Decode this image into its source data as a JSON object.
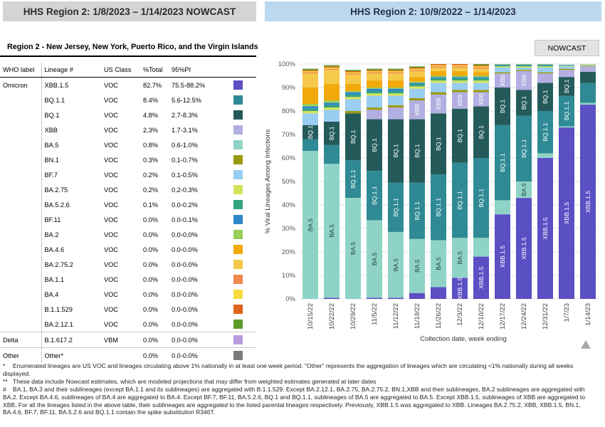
{
  "header": {
    "left_title": "HHS Region 2: 1/8/2023 – 1/14/2023 NOWCAST",
    "right_title": "HHS Region 2: 10/9/2022 – 1/14/2023"
  },
  "region_title": "Region 2 - New Jersey, New York, Puerto Rico, and the Virgin Islands",
  "nowcast_button": "NOWCAST",
  "table": {
    "headers": [
      "WHO label",
      "Lineage #",
      "US Class",
      "%Total",
      "95%PI",
      ""
    ],
    "rows": [
      {
        "who": "Omicron",
        "lineage": "XBB.1.5",
        "cls": "VOC",
        "total": "82.7%",
        "pi": "75.5-88.2%",
        "color": "#5b4fc4"
      },
      {
        "who": "",
        "lineage": "BQ.1.1",
        "cls": "VOC",
        "total": "8.4%",
        "pi": "5.6-12.5%",
        "color": "#2f8a95"
      },
      {
        "who": "",
        "lineage": "BQ.1",
        "cls": "VOC",
        "total": "4.8%",
        "pi": "2.7-8.3%",
        "color": "#245b5a"
      },
      {
        "who": "",
        "lineage": "XBB",
        "cls": "VOC",
        "total": "2.3%",
        "pi": "1.7-3.1%",
        "color": "#b3aee2"
      },
      {
        "who": "",
        "lineage": "BA.5",
        "cls": "VOC",
        "total": "0.8%",
        "pi": "0.6-1.0%",
        "color": "#8fd3c6"
      },
      {
        "who": "",
        "lineage": "BN.1",
        "cls": "VOC",
        "total": "0.3%",
        "pi": "0.1-0.7%",
        "color": "#9a9a10"
      },
      {
        "who": "",
        "lineage": "BF.7",
        "cls": "VOC",
        "total": "0.2%",
        "pi": "0.1-0.5%",
        "color": "#99cdf1"
      },
      {
        "who": "",
        "lineage": "BA.2.75",
        "cls": "VOC",
        "total": "0.2%",
        "pi": "0.2-0.3%",
        "color": "#d4e25c"
      },
      {
        "who": "",
        "lineage": "BA.5.2.6",
        "cls": "VOC",
        "total": "0.1%",
        "pi": "0.0-0.2%",
        "color": "#33a380"
      },
      {
        "who": "",
        "lineage": "BF.11",
        "cls": "VOC",
        "total": "0.0%",
        "pi": "0.0-0.1%",
        "color": "#2e86c9"
      },
      {
        "who": "",
        "lineage": "BA.2",
        "cls": "VOC",
        "total": "0.0%",
        "pi": "0.0-0.0%",
        "color": "#97cf59"
      },
      {
        "who": "",
        "lineage": "BA.4.6",
        "cls": "VOC",
        "total": "0.0%",
        "pi": "0.0-0.0%",
        "color": "#f2a90a"
      },
      {
        "who": "",
        "lineage": "BA.2.75.2",
        "cls": "VOC",
        "total": "0.0%",
        "pi": "0.0-0.0%",
        "color": "#f5c94a"
      },
      {
        "who": "",
        "lineage": "BA.1.1",
        "cls": "VOC",
        "total": "0.0%",
        "pi": "0.0-0.0%",
        "color": "#f0894f"
      },
      {
        "who": "",
        "lineage": "BA.4",
        "cls": "VOC",
        "total": "0.0%",
        "pi": "0.0-0.0%",
        "color": "#f7da3d"
      },
      {
        "who": "",
        "lineage": "B.1.1.529",
        "cls": "VOC",
        "total": "0.0%",
        "pi": "0.0-0.0%",
        "color": "#de6319"
      },
      {
        "who": "",
        "lineage": "BA.2.12.1",
        "cls": "VOC",
        "total": "0.0%",
        "pi": "0.0-0.0%",
        "color": "#5c9a28"
      },
      {
        "who": "Delta",
        "lineage": "B.1.617.2",
        "cls": "VBM",
        "total": "0.0%",
        "pi": "0.0-0.0%",
        "color": "#b99ce0"
      },
      {
        "who": "Other",
        "lineage": "Other*",
        "cls": "",
        "total": "0.0%",
        "pi": "0.0-0.0%",
        "color": "#7a7a7a"
      }
    ]
  },
  "chart_data": {
    "type": "bar",
    "stacked": true,
    "ylabel": "% Viral Lineages Among Infections",
    "xlabel": "Collection date, week ending",
    "ylim": [
      0,
      100
    ],
    "yticks": [
      "0%",
      "10%",
      "20%",
      "30%",
      "40%",
      "50%",
      "60%",
      "70%",
      "80%",
      "90%",
      "100%"
    ],
    "categories": [
      "10/15/22",
      "10/22/22",
      "10/29/22",
      "11/5/22",
      "11/12/22",
      "11/19/22",
      "11/26/22",
      "12/3/22",
      "12/10/22",
      "12/17/22",
      "12/24/22",
      "12/31/22",
      "1/7/23",
      "1/14/23"
    ],
    "nowcast_categories": [
      "12/31/22",
      "1/7/23",
      "1/14/23"
    ],
    "series": [
      {
        "name": "XBB.1.5",
        "color": "#5b4fc4",
        "values": [
          0,
          0.5,
          0,
          0.5,
          0.5,
          2.5,
          5,
          9,
          18,
          36,
          43,
          60,
          73,
          82.7
        ]
      },
      {
        "name": "BA.5",
        "color": "#8fd3c6",
        "values": [
          63,
          57,
          43,
          33,
          28,
          23,
          20,
          17,
          8,
          6,
          7,
          2,
          0.5,
          0.8
        ]
      },
      {
        "name": "BQ.1.1",
        "color": "#2f8a95",
        "values": [
          5,
          8,
          16,
          21,
          21,
          24,
          28,
          32,
          34,
          32,
          28,
          18,
          13,
          8.4
        ]
      },
      {
        "name": "BQ.1",
        "color": "#245b5a",
        "values": [
          6,
          10,
          20,
          22,
          27,
          27,
          26,
          23,
          22,
          16,
          11,
          12,
          8,
          4.8
        ]
      },
      {
        "name": "XBB",
        "color": "#b3aee2",
        "values": [
          0,
          0,
          0,
          4,
          5,
          8,
          8,
          7,
          6,
          6,
          8,
          4,
          3,
          2.3
        ]
      },
      {
        "name": "BN.1",
        "color": "#9a9a10",
        "values": [
          0,
          0,
          1,
          1,
          1,
          1,
          1,
          1,
          1,
          0.5,
          0.5,
          0.5,
          0.5,
          0.3
        ]
      },
      {
        "name": "BF.7",
        "color": "#99cdf1",
        "values": [
          5,
          5,
          5,
          5,
          4,
          4,
          4,
          3,
          3,
          2,
          1,
          2,
          1,
          0.2
        ]
      },
      {
        "name": "BA.2.75",
        "color": "#d4e25c",
        "values": [
          1,
          1,
          1,
          1,
          1,
          1,
          1,
          1,
          1,
          0.5,
          0.5,
          0.5,
          0.3,
          0.2
        ]
      },
      {
        "name": "BA.5.2.6",
        "color": "#33a380",
        "values": [
          1,
          1,
          1,
          1,
          1,
          1,
          1,
          1,
          1,
          0.5,
          0.5,
          0.5,
          0.2,
          0.1
        ]
      },
      {
        "name": "BF.11",
        "color": "#2e86c9",
        "values": [
          1,
          1,
          1,
          1,
          1,
          0.5,
          0.5,
          0.5,
          0.5,
          0.3,
          0.3,
          0.3,
          0.2,
          0
        ]
      },
      {
        "name": "BA.2",
        "color": "#97cf59",
        "values": [
          1,
          1,
          0.5,
          0.5,
          0.5,
          0.5,
          0.5,
          0.5,
          0.5,
          0.2,
          0.2,
          0.2,
          0,
          0
        ]
      },
      {
        "name": "BA.4.6",
        "color": "#f2a90a",
        "values": [
          7,
          7,
          3,
          3,
          3,
          2,
          2,
          2,
          1.5,
          0.5,
          0.5,
          0.5,
          0,
          0
        ]
      },
      {
        "name": "BA.2.75.2",
        "color": "#f5c94a",
        "values": [
          6,
          6,
          4,
          3,
          3,
          2.5,
          1.5,
          1.5,
          1.5,
          0.5,
          0.5,
          0.5,
          0,
          0
        ]
      },
      {
        "name": "BA.1.1",
        "color": "#f0894f",
        "values": [
          0.5,
          0.5,
          0.5,
          0.5,
          0.5,
          0.5,
          0.5,
          0.5,
          0.5,
          0.2,
          0.2,
          0.2,
          0,
          0
        ]
      },
      {
        "name": "BA.4",
        "color": "#f7da3d",
        "values": [
          0.5,
          0.5,
          0.5,
          0.5,
          0.5,
          0.5,
          0.5,
          0.5,
          0.5,
          0.2,
          0.2,
          0.2,
          0,
          0
        ]
      },
      {
        "name": "B.1.1.529",
        "color": "#de6319",
        "values": [
          0.5,
          0.5,
          0.5,
          0.5,
          0.5,
          0.5,
          0.5,
          0.5,
          0.5,
          0.2,
          0.2,
          0.2,
          0,
          0
        ]
      },
      {
        "name": "BA.2.12.1",
        "color": "#5c9a28",
        "values": [
          0.5,
          0.5,
          0.5,
          0.5,
          0.5,
          0.5,
          0.5,
          0.5,
          0.5,
          0.2,
          0.2,
          0.2,
          0,
          0
        ]
      },
      {
        "name": "B.1.617.2",
        "color": "#b99ce0",
        "values": [
          0,
          0,
          0,
          0,
          0,
          0,
          0,
          0,
          0,
          0,
          0,
          0,
          0,
          0
        ]
      },
      {
        "name": "Other*",
        "color": "#7a7a7a",
        "values": [
          0,
          0,
          0,
          0,
          0,
          0,
          0,
          0,
          0,
          0,
          0,
          0,
          0,
          0
        ]
      }
    ],
    "segment_labels": [
      [
        "BA.5",
        "BQ.1"
      ],
      [
        "BA.5",
        "BQ.1"
      ],
      [
        "BA.5",
        "BQ.1.1",
        "BQ.1"
      ],
      [
        "BA.5",
        "BQ.1.1",
        "BQ.1"
      ],
      [
        "BA.5",
        "BQ.1.1",
        "BQ.1"
      ],
      [
        "BA.5",
        "BQ.1.1",
        "BQ.1",
        "XBB"
      ],
      [
        "BA.5",
        "BQ.1.1",
        "BQ.1",
        "XBB"
      ],
      [
        "XBB.1.5",
        "BA.5",
        "BQ.1.1",
        "BQ.1",
        "XBB"
      ],
      [
        "XBB.1.5",
        "BQ.1.1",
        "BQ.1",
        "XBB"
      ],
      [
        "XBB.1.5",
        "BQ.1.1",
        "BQ.1",
        "XBB"
      ],
      [
        "XBB.1.5",
        "BA.5",
        "BQ.1.1",
        "BQ.1",
        "XBB"
      ],
      [
        "XBB.1.5",
        "BQ.1.1",
        "BQ.1"
      ],
      [
        "XBB.1.5",
        "BQ.1.1",
        "BQ.1"
      ],
      [
        "XBB.1.5"
      ]
    ]
  },
  "notes": [
    {
      "marker": "*",
      "text": "Enumerated lineages are US VOC and lineages circulating above 1% nationally in at least one week period. \"Other\" represents the aggregation of lineages which are circulating <1% nationally during all weeks displayed."
    },
    {
      "marker": "**",
      "text": "These data include Nowcast estimates, which are modeled projections that may differ from weighted estimates generated at later dates"
    },
    {
      "marker": "#",
      "text": "BA.1, BA.3 and their sublineages (except BA.1.1 and its sublineages) are aggregated with B.1.1.529. Except BA.2.12.1, BA.2.75, BA.2.75.2, BN.1,XBB and their sublineages, BA.2 sublineages are aggregated with BA.2. Except BA.4.6, sublineages of BA.4 are aggregated to BA.4. Except BF.7, BF.11, BA.5.2.6, BQ.1 and BQ.1.1, sublineages of BA.5 are aggregated to BA.5. Except XBB.1.5, sublineages of XBB are aggregated to XBB. For all the lineages listed in the above table, their sublineages are aggregated to the listed parental lineages respectively. Previously, XBB.1.5 was aggregated to XBB. Lineages BA.2.75.2, XBB, XBB.1.5, BN.1, BA.4.6, BF.7, BF.11, BA.5.2.6 and BQ.1.1 contain the spike substitution R346T."
    }
  ]
}
